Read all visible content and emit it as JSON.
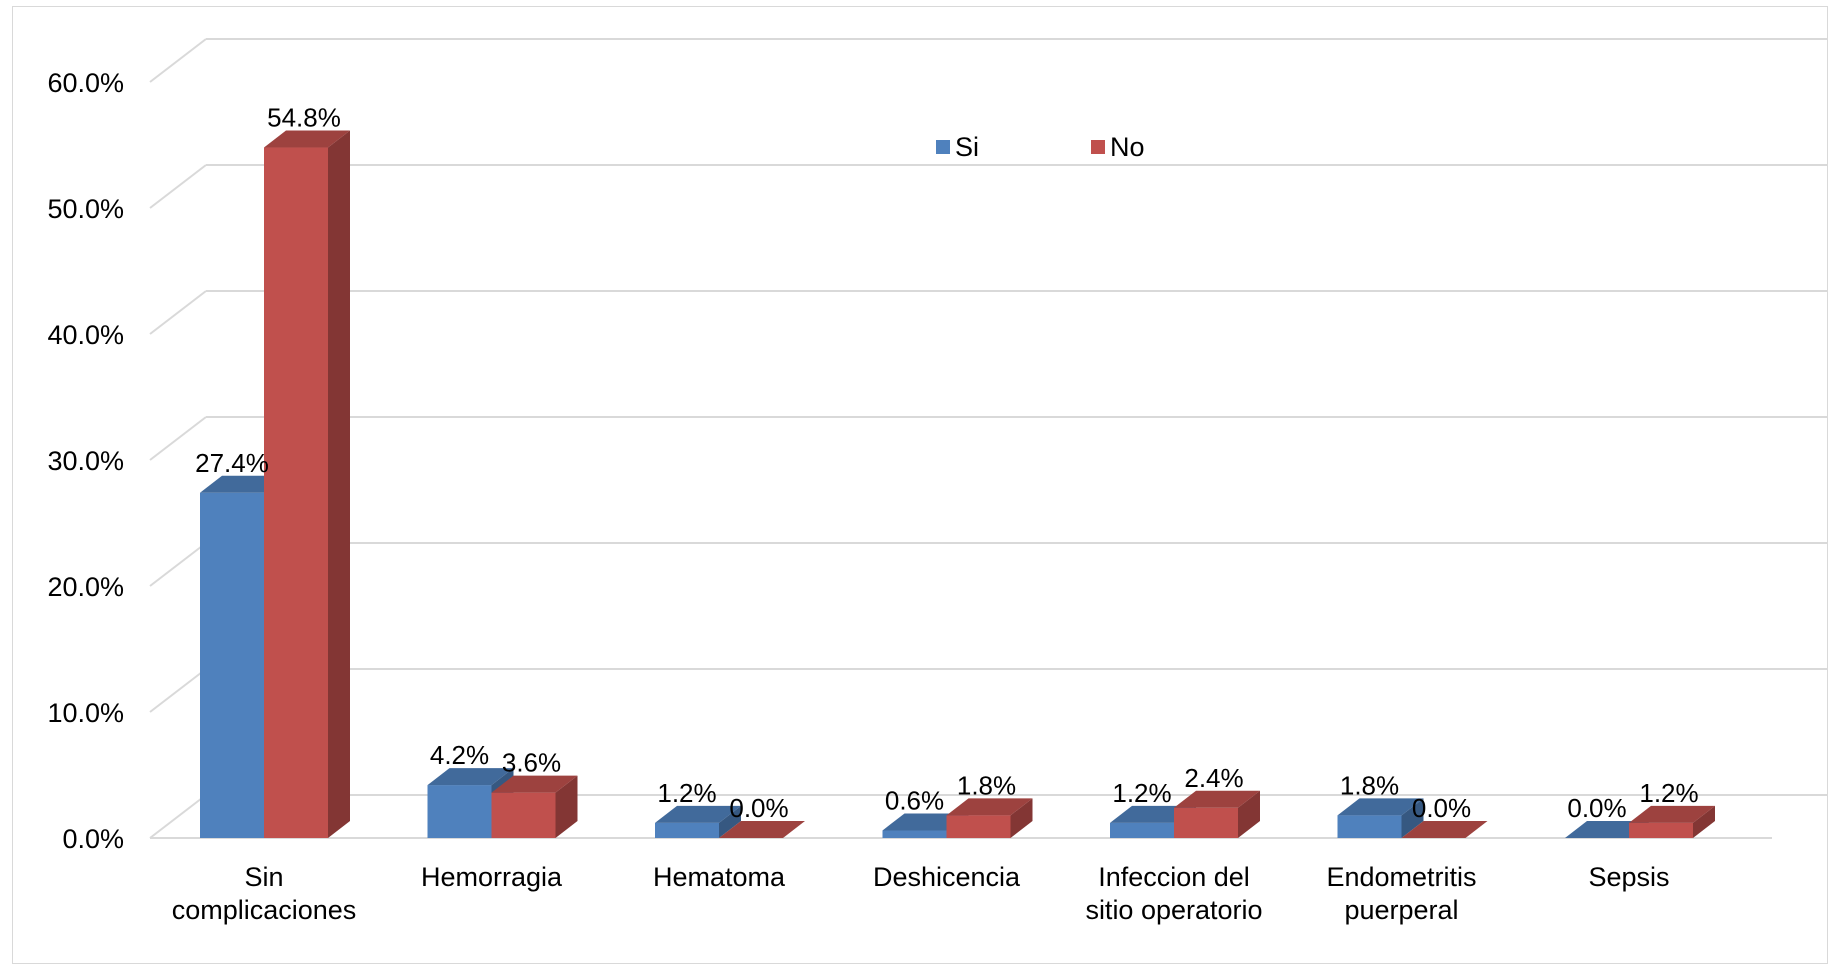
{
  "chart_data": {
    "type": "bar",
    "categories": [
      [
        "Sin",
        "complicaciones"
      ],
      [
        "Hemorragia"
      ],
      [
        "Hematoma"
      ],
      [
        "Deshicencia"
      ],
      [
        "Infeccion del",
        "sitio operatorio"
      ],
      [
        "Endometritis",
        "puerperal"
      ],
      [
        "Sepsis"
      ]
    ],
    "series": [
      {
        "name": "Si",
        "color": "#4f81bd",
        "values": [
          27.4,
          4.2,
          1.2,
          0.6,
          1.2,
          1.8,
          0.0
        ],
        "labels": [
          "27.4%",
          "4.2%",
          "1.2%",
          "0.6%",
          "1.2%",
          "1.8%",
          "0.0%"
        ]
      },
      {
        "name": "No",
        "color": "#c0504d",
        "values": [
          54.8,
          3.6,
          0.0,
          1.8,
          2.4,
          0.0,
          1.2
        ],
        "labels": [
          "54.8%",
          "3.6%",
          "0.0%",
          "1.8%",
          "2.4%",
          "0.0%",
          "1.2%"
        ]
      }
    ],
    "ylim": [
      0,
      60
    ],
    "yticks": [
      "0.0%",
      "10.0%",
      "20.0%",
      "30.0%",
      "40.0%",
      "50.0%",
      "60.0%"
    ],
    "grid": true,
    "legend": "top-center",
    "style": "3d-clustered-column"
  }
}
